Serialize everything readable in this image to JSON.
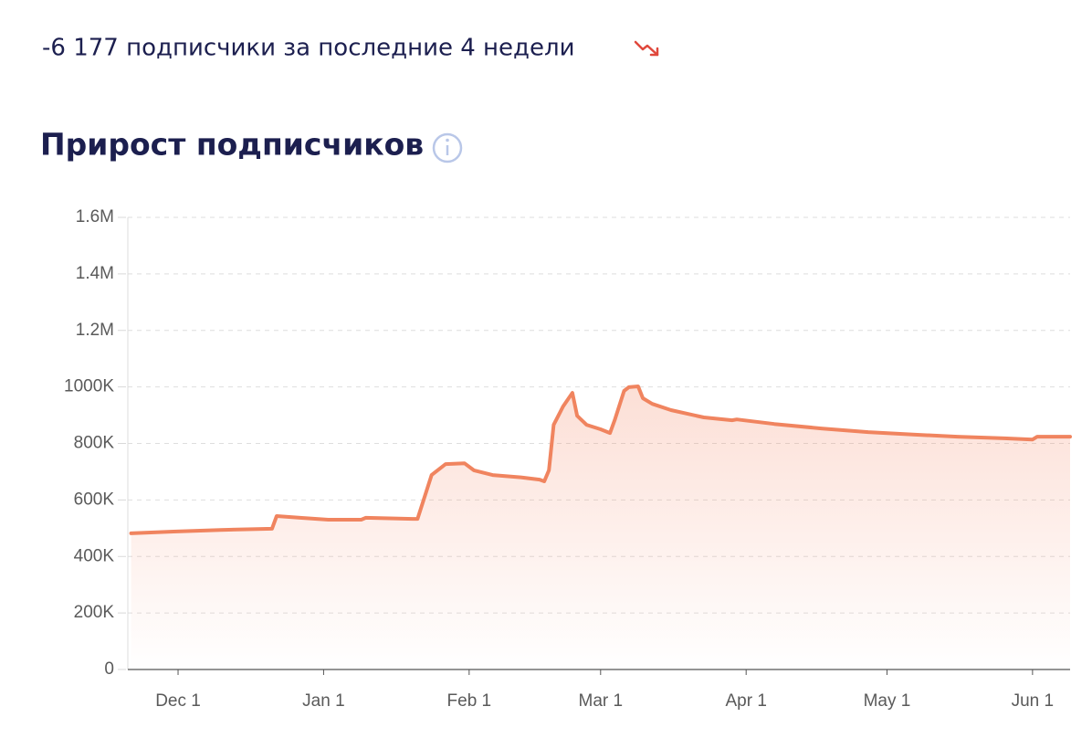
{
  "summary": "-6 177 подписчики за последние 4 недели",
  "chart_data": {
    "type": "area",
    "title": "Прирост подписчиков",
    "color": "#f0845f",
    "grid": true,
    "x": [
      -10,
      -1,
      9,
      20,
      21,
      26,
      32,
      39,
      40,
      50,
      51,
      54,
      55,
      57,
      61,
      63,
      67,
      73,
      77,
      78,
      79,
      80,
      81,
      82,
      84,
      85,
      87,
      90,
      92,
      93,
      95,
      96,
      98,
      99,
      101,
      105,
      112,
      118,
      119,
      127,
      137,
      147,
      157,
      166,
      176,
      182,
      183,
      190
    ],
    "values": [
      482000,
      488000,
      494000,
      498000,
      543000,
      537000,
      530000,
      530000,
      537000,
      533000,
      533000,
      688000,
      701000,
      727000,
      730000,
      705000,
      688000,
      680000,
      672000,
      666000,
      705000,
      866000,
      898000,
      931000,
      979000,
      898000,
      866000,
      850000,
      837000,
      882000,
      986000,
      999000,
      1002000,
      960000,
      940000,
      918000,
      892000,
      882000,
      885000,
      869000,
      853000,
      840000,
      831000,
      824000,
      818000,
      814000,
      824000,
      824000
    ],
    "xlim": [
      -10,
      190
    ],
    "xticks": [
      {
        "value": 0,
        "label": "Dec 1"
      },
      {
        "value": 31,
        "label": "Jan 1"
      },
      {
        "value": 62,
        "label": "Feb 1"
      },
      {
        "value": 90,
        "label": "Mar 1"
      },
      {
        "value": 121,
        "label": "Apr 1"
      },
      {
        "value": 151,
        "label": "May 1"
      },
      {
        "value": 182,
        "label": "Jun 1"
      }
    ],
    "ylim": [
      0,
      1600000
    ],
    "yticks": [
      0,
      {
        "value": 200000,
        "label": "200K"
      },
      {
        "value": 400000,
        "label": "400K"
      },
      {
        "value": 600000,
        "label": "600K"
      },
      {
        "value": 800000,
        "label": "800K"
      },
      {
        "value": 1000000,
        "label": "1000K"
      },
      {
        "value": 1200000,
        "label": "1.2M"
      },
      {
        "value": 1400000,
        "label": "1.4M"
      },
      {
        "value": 1600000,
        "label": "1.6M"
      }
    ]
  }
}
